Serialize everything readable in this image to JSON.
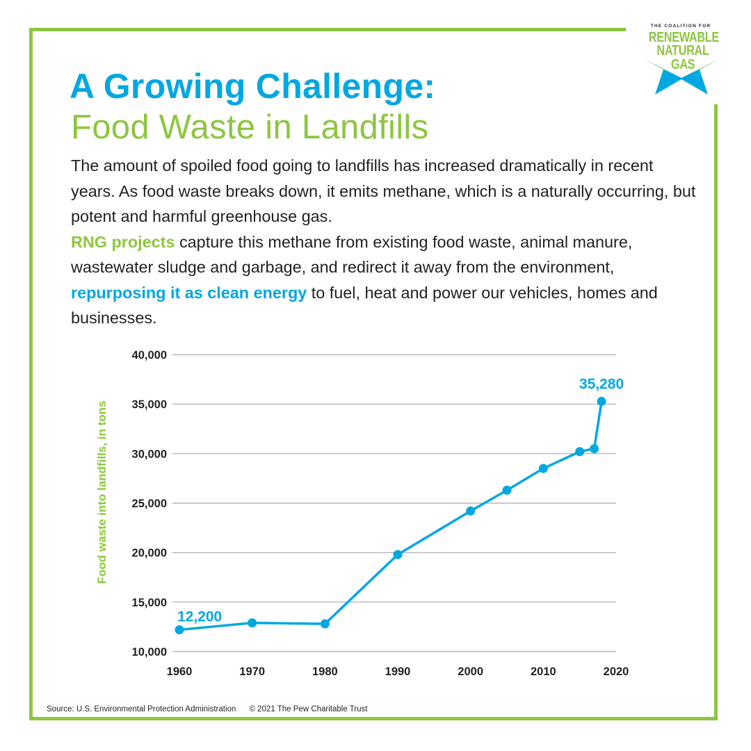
{
  "logo": {
    "small": "THE COALITION FOR",
    "line1": "RENEWABLE",
    "line2": "NATURAL GAS"
  },
  "title": {
    "line1": "A Growing Challenge:",
    "line2": "Food Waste in Landfills"
  },
  "body": {
    "p1": "The amount of spoiled food going to landfills has increased dramatically in recent years. As food waste breaks down, it emits methane, which is a naturally occurring, but potent and harmful greenhouse gas.",
    "p2_highlight": "RNG projects",
    "p2_text": " capture this methane from existing food waste, animal manure, wastewater sludge and garbage, and redirect it away from the environment, ",
    "p2_highlight2": "repurposing it as clean energy",
    "p2_end": " to fuel, heat and power our vehicles, homes and businesses."
  },
  "chart_data": {
    "type": "line",
    "title": "",
    "xlabel": "",
    "ylabel": "Food waste into landfills, in tons",
    "ylim": [
      10000,
      40000
    ],
    "xlim": [
      1960,
      2020
    ],
    "yticks": [
      10000,
      15000,
      20000,
      25000,
      30000,
      35000,
      40000
    ],
    "ytick_labels": [
      "10,000",
      "15,000",
      "20,000",
      "25,000",
      "30,000",
      "35,000",
      "40,000"
    ],
    "xticks": [
      1960,
      1970,
      1980,
      1990,
      2000,
      2010,
      2020
    ],
    "xtick_labels": [
      "1960",
      "1970",
      "1980",
      "1990",
      "2000",
      "2010",
      "2020"
    ],
    "grid": true,
    "series": [
      {
        "name": "Food waste into landfills",
        "x": [
          1960,
          1970,
          1980,
          1990,
          2000,
          2005,
          2010,
          2015,
          2017,
          2018
        ],
        "values": [
          12200,
          12900,
          12800,
          19800,
          24200,
          26300,
          28500,
          30200,
          30500,
          35280
        ]
      }
    ],
    "annotations": [
      {
        "x": 1960,
        "y": 12200,
        "text": "12,200"
      },
      {
        "x": 2018,
        "y": 35280,
        "text": "35,280"
      }
    ],
    "colors": {
      "line": "#00a7e1",
      "grid": "#a7a9ac",
      "ylabel": "#8dc63f"
    }
  },
  "footer": {
    "source": "Source: U.S. Environmental Protection Administration",
    "copyright": "© 2021 The Pew Charitable Trust"
  }
}
